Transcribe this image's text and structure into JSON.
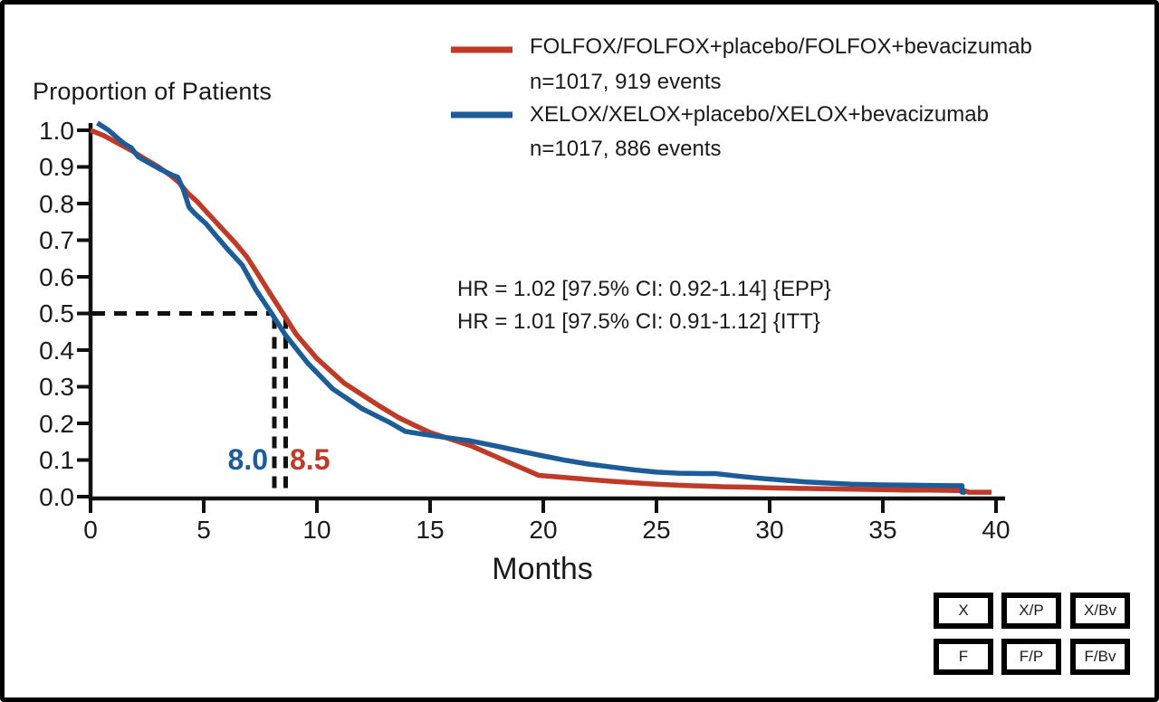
{
  "figure": {
    "y_axis_title": "Proportion of Patients",
    "x_axis_title": "Months",
    "legend": [
      {
        "label": "FOLFOX/FOLFOX+placebo/FOLFOX+bevacizumab",
        "sub": "n=1017, 919 events",
        "color": "#c03a28"
      },
      {
        "label": "XELOX/XELOX+placebo/XELOX+bevacizumab",
        "sub": "n=1017, 886 events",
        "color": "#1c5d99"
      }
    ],
    "annotations": {
      "hr_epp": "HR = 1.02 [97.5% CI: 0.92-1.14] {EPP}",
      "hr_itt": "HR = 1.01 [97.5% CI: 0.91-1.12] {ITT}",
      "median_xelox_label": "8.0",
      "median_folfox_label": "8.5"
    },
    "footer_buttons": [
      [
        "X",
        "X/P",
        "X/Bv"
      ],
      [
        "F",
        "F/P",
        "F/Bv"
      ]
    ]
  },
  "chart_data": {
    "type": "line",
    "title": "",
    "xlabel": "Months",
    "ylabel": "Proportion of Patients",
    "xlim": [
      0,
      40
    ],
    "ylim": [
      0,
      1
    ],
    "x_ticks": [
      0,
      5,
      10,
      15,
      20,
      25,
      30,
      35,
      40
    ],
    "y_ticks": [
      "0.0",
      "0.1",
      "0.2",
      "0.3",
      "0.4",
      "0.5",
      "0.6",
      "0.7",
      "0.8",
      "0.9",
      "1.0"
    ],
    "grid": false,
    "legend_position": "top-right",
    "median_dashes": {
      "y": 0.5,
      "x_values": [
        8.0,
        8.5
      ]
    },
    "series": [
      {
        "name": "FOLFOX/FOLFOX+placebo/FOLFOX+bevacizumab",
        "n_label": "n=1017, 919 events",
        "color": "#c03a28",
        "median_months": 8.5,
        "points": [
          [
            0,
            1.0
          ],
          [
            0.6,
            0.985
          ],
          [
            1.2,
            0.965
          ],
          [
            1.8,
            0.945
          ],
          [
            2.4,
            0.922
          ],
          [
            3.0,
            0.9
          ],
          [
            3.5,
            0.878
          ],
          [
            3.9,
            0.858
          ],
          [
            4.3,
            0.828
          ],
          [
            4.7,
            0.806
          ],
          [
            5.2,
            0.772
          ],
          [
            5.8,
            0.732
          ],
          [
            6.4,
            0.692
          ],
          [
            6.9,
            0.655
          ],
          [
            7.5,
            0.597
          ],
          [
            8.0,
            0.548
          ],
          [
            8.5,
            0.5
          ],
          [
            9.1,
            0.442
          ],
          [
            10.0,
            0.377
          ],
          [
            11.2,
            0.31
          ],
          [
            12.0,
            0.278
          ],
          [
            12.8,
            0.246
          ],
          [
            13.6,
            0.216
          ],
          [
            14.3,
            0.195
          ],
          [
            15.0,
            0.175
          ],
          [
            15.7,
            0.161
          ],
          [
            16.8,
            0.139
          ],
          [
            17.8,
            0.112
          ],
          [
            18.8,
            0.085
          ],
          [
            19.8,
            0.058
          ],
          [
            20.8,
            0.053
          ],
          [
            22,
            0.047
          ],
          [
            23,
            0.042
          ],
          [
            24,
            0.038
          ],
          [
            25,
            0.034
          ],
          [
            26,
            0.031
          ],
          [
            27,
            0.029
          ],
          [
            28,
            0.027
          ],
          [
            29,
            0.026
          ],
          [
            30,
            0.024
          ],
          [
            31,
            0.023
          ],
          [
            32,
            0.022
          ],
          [
            33,
            0.021
          ],
          [
            34,
            0.02
          ],
          [
            35,
            0.019
          ],
          [
            36,
            0.018
          ],
          [
            37,
            0.018
          ],
          [
            38,
            0.017
          ],
          [
            38.6,
            0.016
          ],
          [
            38.8,
            0.012
          ],
          [
            39.8,
            0.012
          ]
        ]
      },
      {
        "name": "XELOX/XELOX+placebo/XELOX+bevacizumab",
        "n_label": "n=1017, 886 events",
        "color": "#1c5d99",
        "median_months": 8.0,
        "points": [
          [
            0.3,
            1.02
          ],
          [
            0.8,
            1.0
          ],
          [
            1.2,
            0.978
          ],
          [
            1.5,
            0.963
          ],
          [
            1.8,
            0.952
          ],
          [
            2.1,
            0.928
          ],
          [
            2.6,
            0.91
          ],
          [
            3.1,
            0.893
          ],
          [
            3.6,
            0.878
          ],
          [
            3.85,
            0.872
          ],
          [
            4.1,
            0.838
          ],
          [
            4.35,
            0.79
          ],
          [
            4.6,
            0.773
          ],
          [
            5.1,
            0.745
          ],
          [
            5.6,
            0.708
          ],
          [
            6.1,
            0.672
          ],
          [
            6.7,
            0.632
          ],
          [
            7.3,
            0.565
          ],
          [
            8.0,
            0.5
          ],
          [
            8.6,
            0.442
          ],
          [
            9.6,
            0.364
          ],
          [
            10.7,
            0.294
          ],
          [
            12.0,
            0.24
          ],
          [
            13.2,
            0.203
          ],
          [
            13.9,
            0.178
          ],
          [
            14.6,
            0.171
          ],
          [
            15.3,
            0.165
          ],
          [
            16.8,
            0.152
          ],
          [
            18.0,
            0.137
          ],
          [
            19.0,
            0.124
          ],
          [
            20.0,
            0.111
          ],
          [
            21.0,
            0.099
          ],
          [
            22.0,
            0.089
          ],
          [
            23.0,
            0.081
          ],
          [
            24.0,
            0.073
          ],
          [
            25.0,
            0.067
          ],
          [
            26.0,
            0.064
          ],
          [
            27.0,
            0.063
          ],
          [
            27.6,
            0.063
          ],
          [
            28.6,
            0.056
          ],
          [
            29.6,
            0.05
          ],
          [
            30.6,
            0.045
          ],
          [
            31.6,
            0.04
          ],
          [
            32.6,
            0.037
          ],
          [
            33.6,
            0.034
          ],
          [
            35.0,
            0.032
          ],
          [
            36.5,
            0.031
          ],
          [
            38.0,
            0.03
          ],
          [
            38.5,
            0.03
          ],
          [
            38.5,
            0.012
          ],
          [
            38.65,
            0.012
          ]
        ]
      }
    ]
  }
}
